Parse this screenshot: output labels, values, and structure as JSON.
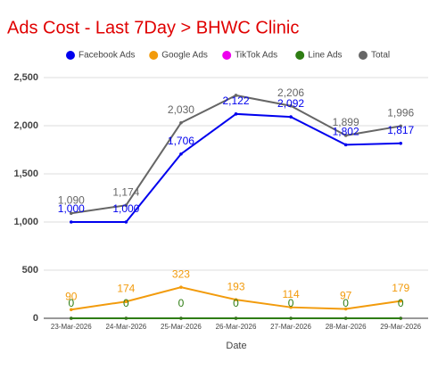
{
  "chart_data": {
    "type": "line",
    "title": "Ads Cost - Last 7Day > BHWC Clinic",
    "x_label": "Date",
    "categories": [
      "23-Mar-2026",
      "24-Mar-2026",
      "25-Mar-2026",
      "26-Mar-2026",
      "27-Mar-2026",
      "28-Mar-2026",
      "29-Mar-2026"
    ],
    "series": [
      {
        "name": "Facebook Ads",
        "color": "#0000ee",
        "values": [
          1000,
          1000,
          1706,
          2122,
          2092,
          1802,
          1817
        ],
        "value_labels": [
          "1,000",
          "1,000",
          "1,706",
          "2,122",
          "2,092",
          "1,802",
          "1,817"
        ]
      },
      {
        "name": "Google Ads",
        "color": "#f29b0c",
        "values": [
          90,
          174,
          323,
          193,
          114,
          97,
          179
        ]
      },
      {
        "name": "TikTok Ads",
        "color": "#ee00ee",
        "values": [
          0,
          0,
          0,
          0,
          0,
          0,
          0
        ]
      },
      {
        "name": "Line Ads",
        "color": "#2e7d13",
        "values": [
          0,
          0,
          0,
          0,
          0,
          0,
          0
        ],
        "value_labels": [
          "0",
          "0",
          "0",
          "0",
          "0",
          "0",
          "0"
        ]
      },
      {
        "name": "Total",
        "color": "#666666",
        "values": [
          1090,
          1174,
          2030,
          2315,
          2206,
          1899,
          1996
        ],
        "value_labels": [
          "1,090",
          "1,174",
          "2,030",
          null,
          "2,206",
          "1,899",
          "1,996"
        ]
      }
    ],
    "ylim": [
      0,
      2500
    ],
    "yticks": [
      0,
      500,
      {
        "value": 1000,
        "label": "1,000"
      },
      {
        "value": 1500,
        "label": "1,500"
      },
      {
        "value": 2000,
        "label": "2,000"
      },
      {
        "value": 2500,
        "label": "2,500"
      }
    ],
    "grid": true
  }
}
